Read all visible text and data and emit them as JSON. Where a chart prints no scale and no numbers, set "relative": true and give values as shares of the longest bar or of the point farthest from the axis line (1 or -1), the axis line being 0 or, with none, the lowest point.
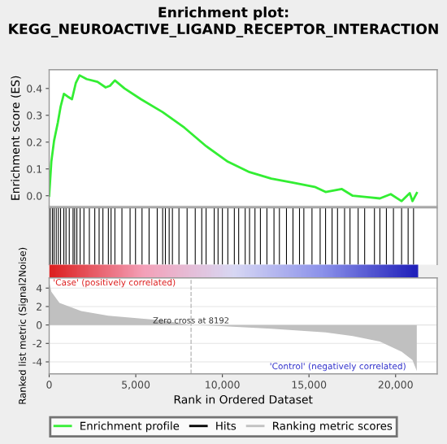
{
  "chart_data": [
    {
      "type": "line",
      "title": "Enrichment plot: KEGG_NEUROACTIVE_LIGAND_RECEPTOR_INTERACTION",
      "ylabel": "Enrichment score (ES)",
      "xlim": [
        0,
        22400
      ],
      "ylim": [
        -0.04,
        0.47
      ],
      "yticks": [
        {
          "value": 0,
          "label": "0.0"
        },
        0.1,
        0.2,
        0.3,
        0.4
      ],
      "tick_labels": "y",
      "legend": "bottom",
      "series": [
        {
          "name": "Enrichment profile",
          "color": "#33ee33",
          "x": [
            0,
            125,
            282,
            500,
            660,
            850,
            1066,
            1317,
            1536,
            1756,
            2163,
            2790,
            3260,
            3511,
            3793,
            4358,
            5298,
            6552,
            7806,
            9060,
            10314,
            11568,
            12822,
            14076,
            15330,
            15957,
            16898,
            17525,
            18465,
            19092,
            19720,
            20347,
            20817,
            20974,
            21224
          ],
          "values": [
            0,
            0.127,
            0.205,
            0.273,
            0.332,
            0.38,
            0.37,
            0.36,
            0.42,
            0.449,
            0.435,
            0.425,
            0.404,
            0.41,
            0.43,
            0.4,
            0.36,
            0.312,
            0.254,
            0.185,
            0.127,
            0.088,
            0.064,
            0.049,
            0.033,
            0.014,
            0.025,
            0.0,
            -0.006,
            -0.01,
            0.006,
            -0.02,
            0.01,
            -0.02,
            0.01
          ]
        }
      ]
    },
    {
      "type": "bar",
      "relative": true,
      "xlim": [
        0,
        22400
      ],
      "tick_labels": false,
      "legend": "bottom",
      "series": [
        {
          "name": "Hits",
          "color": "#000000",
          "x": [
            63,
            188,
            282,
            408,
            533,
            658,
            846,
            972,
            1160,
            1379,
            1473,
            1599,
            1787,
            2006,
            2320,
            2633,
            2884,
            3103,
            3417,
            3574,
            3793,
            4201,
            4671,
            4985,
            5361,
            5768,
            6238,
            6552,
            6709,
            6928,
            7116,
            7492,
            7963,
            8433,
            8809,
            9060,
            9530,
            9750,
            10001,
            10314,
            10690,
            10941,
            11317,
            11568,
            11882,
            12195,
            12571,
            12979,
            13292,
            13700,
            14076,
            14452,
            14703,
            15173,
            15644,
            15957,
            16333,
            16647,
            17054,
            17368,
            17838,
            18214,
            18779,
            19092,
            19469,
            19876,
            20347,
            20723,
            21036
          ],
          "values": [
            1,
            1,
            1,
            1,
            1,
            1,
            1,
            1,
            1,
            1,
            1,
            1,
            1,
            1,
            1,
            1,
            1,
            1,
            1,
            1,
            1,
            1,
            1,
            1,
            1,
            1,
            1,
            1,
            1,
            1,
            1,
            1,
            1,
            1,
            1,
            1,
            1,
            1,
            1,
            1,
            1,
            1,
            1,
            1,
            1,
            1,
            1,
            1,
            1,
            1,
            1,
            1,
            1,
            1,
            1,
            1,
            1,
            1,
            1,
            1,
            1,
            1,
            1,
            1,
            1,
            1,
            1,
            1,
            1
          ]
        }
      ]
    },
    {
      "type": "area",
      "xlabel": "Rank in Ordered Dataset",
      "ylabel": "Ranked list metric (Signal2Noise)",
      "xlim": [
        0,
        22400
      ],
      "ylim": [
        -5.3,
        5.1
      ],
      "xticks": [
        0,
        {
          "value": 5000,
          "label": "5,000"
        },
        {
          "value": 10000,
          "label": "10,000"
        },
        {
          "value": 15000,
          "label": "15,000"
        },
        {
          "value": 20000,
          "label": "20,000"
        }
      ],
      "yticks": [
        -4,
        -2,
        0,
        2,
        4
      ],
      "grid": "y",
      "legend": "bottom",
      "ref_lines": [
        {
          "axis": "x",
          "value": 8192,
          "label": "Zero cross at 8192",
          "color": "#bbbbbb",
          "line_style": "dashed"
        }
      ],
      "annotations": [
        "'Case' (positively correlated)",
        "'Control' (negatively correlated)"
      ],
      "series": [
        {
          "name": "Ranking metric scores",
          "color": "#c0c0c0",
          "x": [
            0,
            125,
            596,
            1850,
            3417,
            6552,
            8192,
            9687,
            12822,
            15957,
            17525,
            19092,
            20347,
            20974,
            21224
          ],
          "values": [
            4.7,
            3.6,
            2.4,
            1.5,
            1.0,
            0.5,
            0,
            -0.1,
            -0.4,
            -0.8,
            -1.2,
            -1.8,
            -2.9,
            -3.8,
            -5.0
          ]
        }
      ]
    }
  ]
}
